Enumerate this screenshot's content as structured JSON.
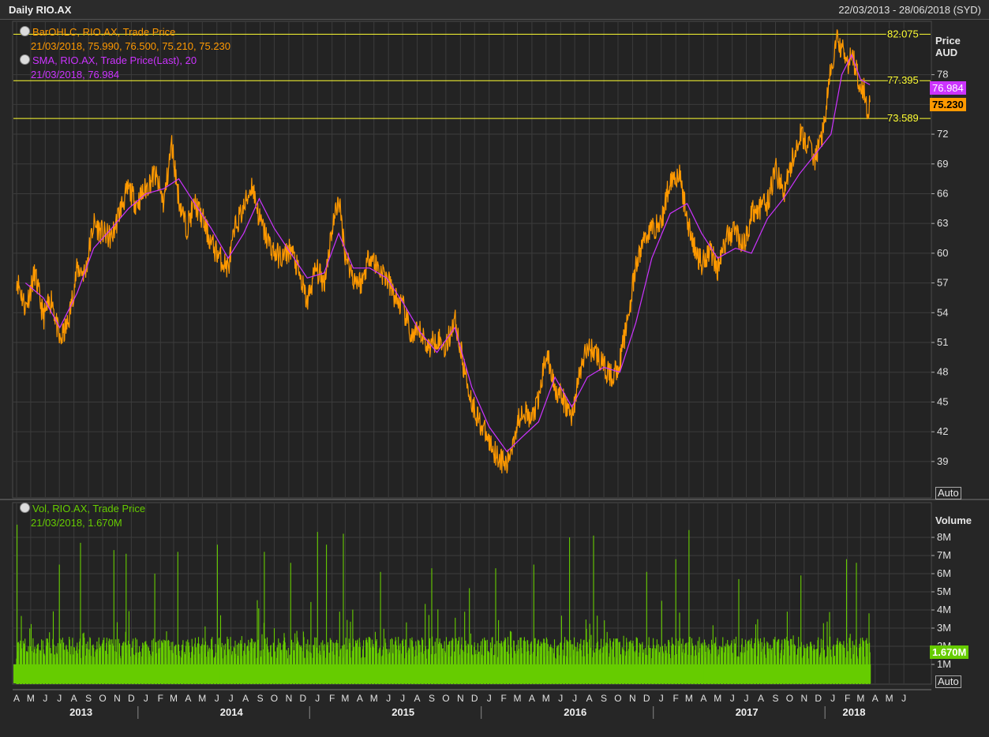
{
  "window": {
    "title": "Daily RIO.AX",
    "date_range": "22/03/2013 - 28/06/2018 (SYD)"
  },
  "price_panel": {
    "legend": [
      {
        "name": "BarOHLC, RIO.AX, Trade Price",
        "values": "21/03/2018, 75.990, 76.500, 75.210, 75.230",
        "color": "#ff9900"
      },
      {
        "name": "SMA, RIO.AX, Trade Price(Last),  20",
        "values": "21/03/2018, 76.984",
        "color": "#cc33ff"
      }
    ],
    "axis_title": [
      "Price",
      "AUD"
    ],
    "auto_label": "Auto",
    "last_price_tag": "75.230",
    "sma_tag": "76.984",
    "reference_lines": [
      {
        "label": "82.075",
        "value": 82.075
      },
      {
        "label": "77.395",
        "value": 77.395
      },
      {
        "label": "73.589",
        "value": 73.589
      }
    ]
  },
  "volume_panel": {
    "legend": {
      "name": "Vol, RIO.AX, Trade Price",
      "values": "21/03/2018, 1.670M",
      "color": "#66cc00"
    },
    "axis_title": "Volume",
    "auto_label": "Auto",
    "last_volume_tag": "1.670M"
  },
  "colors": {
    "background": "#262626",
    "grid": "#3c3c3c",
    "price": "#ff9900",
    "sma": "#cc33ff",
    "volume": "#66cc00",
    "reference": "#ffff33"
  },
  "chart_data": [
    {
      "type": "line",
      "title": "Daily RIO.AX",
      "ylabel": "Price AUD",
      "yticks": [
        39,
        42,
        45,
        48,
        51,
        54,
        57,
        60,
        63,
        66,
        69,
        72,
        75,
        78
      ],
      "ytick_labels": [
        "39",
        "42",
        "45",
        "48",
        "51",
        "54",
        "57",
        "60",
        "63",
        "66",
        "69",
        "72",
        "",
        "78"
      ],
      "ylim": [
        36.5,
        81.5
      ],
      "xlim": [
        "2013-04-01",
        "2018-07-01"
      ],
      "month_labels": [
        "A",
        "M",
        "J",
        "J",
        "A",
        "S",
        "O",
        "N",
        "D",
        "J",
        "F",
        "M",
        "A",
        "M",
        "J",
        "J",
        "A",
        "S",
        "O",
        "N",
        "D",
        "J",
        "F",
        "M",
        "A",
        "M",
        "J",
        "J",
        "A",
        "S",
        "O",
        "N",
        "D",
        "J",
        "F",
        "M",
        "A",
        "M",
        "J",
        "J",
        "A",
        "S",
        "O",
        "N",
        "D",
        "J",
        "F",
        "M",
        "A",
        "M",
        "J",
        "J",
        "A",
        "S",
        "O",
        "N",
        "D",
        "J",
        "F",
        "M",
        "A",
        "M",
        "J"
      ],
      "year_labels": [
        "2013",
        "2014",
        "2015",
        "2016",
        "2017",
        "2018"
      ],
      "grid": true,
      "series": [
        {
          "name": "BarOHLC, RIO.AX, Trade Price",
          "x": [
            "2013-04-01",
            "2013-04-20",
            "2013-05-10",
            "2013-05-28",
            "2013-06-15",
            "2013-07-02",
            "2013-07-20",
            "2013-08-08",
            "2013-08-25",
            "2013-09-12",
            "2013-10-01",
            "2013-10-20",
            "2013-11-08",
            "2013-11-25",
            "2013-12-12",
            "2014-01-01",
            "2014-01-20",
            "2014-02-08",
            "2014-02-25",
            "2014-03-12",
            "2014-03-28",
            "2014-04-15",
            "2014-05-01",
            "2014-05-20",
            "2014-06-08",
            "2014-06-25",
            "2014-07-12",
            "2014-07-28",
            "2014-08-15",
            "2014-08-30",
            "2014-09-15",
            "2014-10-01",
            "2014-10-18",
            "2014-11-05",
            "2014-11-22",
            "2014-12-10",
            "2014-12-28",
            "2015-01-15",
            "2015-02-01",
            "2015-02-15",
            "2015-03-01",
            "2015-03-18",
            "2015-04-05",
            "2015-04-22",
            "2015-05-10",
            "2015-05-28",
            "2015-06-15",
            "2015-07-02",
            "2015-07-20",
            "2015-08-08",
            "2015-08-25",
            "2015-09-12",
            "2015-10-01",
            "2015-10-20",
            "2015-11-08",
            "2015-11-25",
            "2015-12-12",
            "2016-01-01",
            "2016-01-20",
            "2016-02-08",
            "2016-02-25",
            "2016-03-12",
            "2016-03-28",
            "2016-04-15",
            "2016-05-01",
            "2016-05-20",
            "2016-06-08",
            "2016-06-25",
            "2016-07-12",
            "2016-07-28",
            "2016-08-15",
            "2016-09-01",
            "2016-09-18",
            "2016-10-05",
            "2016-10-22",
            "2016-11-08",
            "2016-11-25",
            "2016-12-12",
            "2017-01-01",
            "2017-01-20",
            "2017-02-08",
            "2017-02-25",
            "2017-03-12",
            "2017-03-28",
            "2017-04-15",
            "2017-05-01",
            "2017-05-20",
            "2017-06-08",
            "2017-06-25",
            "2017-07-12",
            "2017-07-28",
            "2017-08-15",
            "2017-09-01",
            "2017-09-18",
            "2017-10-05",
            "2017-10-22",
            "2017-11-08",
            "2017-11-25",
            "2017-12-12",
            "2017-12-28",
            "2018-01-10",
            "2018-01-20",
            "2018-02-01",
            "2018-02-10",
            "2018-02-20",
            "2018-03-01",
            "2018-03-08",
            "2018-03-15",
            "2018-03-21"
          ],
          "y": [
            57.5,
            54.5,
            58.0,
            53.5,
            55.5,
            51.0,
            53.0,
            58.5,
            58.0,
            63.0,
            62.0,
            61.5,
            64.5,
            66.5,
            65.0,
            66.5,
            68.0,
            65.0,
            71.0,
            65.5,
            62.5,
            65.0,
            63.5,
            61.0,
            59.5,
            58.5,
            63.0,
            64.5,
            67.0,
            63.5,
            61.5,
            60.0,
            59.5,
            60.5,
            58.0,
            55.0,
            58.5,
            57.0,
            62.5,
            65.5,
            60.0,
            57.5,
            57.0,
            60.0,
            58.5,
            57.5,
            55.5,
            54.5,
            51.5,
            52.0,
            50.5,
            51.5,
            50.5,
            53.5,
            48.5,
            45.0,
            43.0,
            41.0,
            39.5,
            38.5,
            42.0,
            44.5,
            43.0,
            45.0,
            50.0,
            46.5,
            45.0,
            43.5,
            48.0,
            50.5,
            50.0,
            48.5,
            47.5,
            49.0,
            53.5,
            58.5,
            61.5,
            62.5,
            63.0,
            67.5,
            68.0,
            63.5,
            60.5,
            59.0,
            60.5,
            58.5,
            61.5,
            62.5,
            60.5,
            64.0,
            64.5,
            65.0,
            68.5,
            66.0,
            69.0,
            72.0,
            71.0,
            69.5,
            72.5,
            78.5,
            81.5,
            80.5,
            79.0,
            80.0,
            78.5,
            77.0,
            76.5,
            74.5,
            75.23
          ]
        },
        {
          "name": "SMA, RIO.AX, Trade Price(Last),  20",
          "x": [
            "2013-04-20",
            "2013-05-28",
            "2013-07-02",
            "2013-08-08",
            "2013-09-12",
            "2013-10-20",
            "2013-11-25",
            "2014-01-01",
            "2014-02-08",
            "2014-03-12",
            "2014-04-15",
            "2014-05-20",
            "2014-06-25",
            "2014-07-28",
            "2014-08-30",
            "2014-10-01",
            "2014-11-05",
            "2014-12-10",
            "2015-01-15",
            "2015-02-15",
            "2015-03-18",
            "2015-04-22",
            "2015-05-28",
            "2015-07-02",
            "2015-08-08",
            "2015-09-12",
            "2015-10-20",
            "2015-11-25",
            "2016-01-01",
            "2016-02-08",
            "2016-03-12",
            "2016-04-15",
            "2016-05-20",
            "2016-06-25",
            "2016-07-28",
            "2016-09-01",
            "2016-10-05",
            "2016-11-08",
            "2016-12-12",
            "2017-01-20",
            "2017-02-25",
            "2017-03-28",
            "2017-05-01",
            "2017-06-08",
            "2017-07-12",
            "2017-08-15",
            "2017-09-18",
            "2017-10-22",
            "2017-11-25",
            "2017-12-28",
            "2018-01-20",
            "2018-02-10",
            "2018-03-01",
            "2018-03-21"
          ],
          "y": [
            57.0,
            55.5,
            52.5,
            56.0,
            60.5,
            62.5,
            64.5,
            66.0,
            66.5,
            67.5,
            65.0,
            62.5,
            59.5,
            62.0,
            65.5,
            62.5,
            60.0,
            57.5,
            58.0,
            62.0,
            58.5,
            58.5,
            57.5,
            55.0,
            52.0,
            50.0,
            52.5,
            46.5,
            42.5,
            40.0,
            41.5,
            43.0,
            47.5,
            44.5,
            47.5,
            48.5,
            48.0,
            53.0,
            59.5,
            64.0,
            65.0,
            62.0,
            59.5,
            60.5,
            60.0,
            63.5,
            65.5,
            68.0,
            70.0,
            72.0,
            78.0,
            80.0,
            77.5,
            76.984
          ]
        }
      ]
    },
    {
      "type": "bar",
      "title": "Vol, RIO.AX, Trade Price",
      "ylabel": "Volume",
      "yticks": [
        1,
        2,
        3,
        4,
        5,
        6,
        7,
        8
      ],
      "ytick_labels": [
        "1M",
        "2M",
        "3M",
        "4M",
        "5M",
        "6M",
        "7M",
        "8M"
      ],
      "ylim": [
        0,
        8.8
      ],
      "unit": "M",
      "baseline_volume": 2.2,
      "series": [
        {
          "name": "Vol, RIO.AX, Trade Price",
          "x": [
            "2013-04-02",
            "2013-07-01",
            "2013-08-15",
            "2013-10-25",
            "2013-11-20",
            "2014-01-20",
            "2014-03-10",
            "2014-06-02",
            "2014-07-20",
            "2014-09-10",
            "2014-11-05",
            "2015-01-01",
            "2015-01-20",
            "2015-02-25",
            "2015-05-15",
            "2015-09-01",
            "2015-11-20",
            "2016-01-15",
            "2016-04-05",
            "2016-06-20",
            "2016-08-10",
            "2016-10-15",
            "2016-12-01",
            "2017-02-01",
            "2017-03-01",
            "2017-06-15",
            "2017-08-20",
            "2017-10-25",
            "2018-01-30",
            "2018-02-20",
            "2018-03-21"
          ],
          "y": [
            8.7,
            6.5,
            7.7,
            7.3,
            7.1,
            6.0,
            7.2,
            7.6,
            6.8,
            7.2,
            6.6,
            8.3,
            7.6,
            8.2,
            6.1,
            6.3,
            5.2,
            6.3,
            6.5,
            8.0,
            8.1,
            5.8,
            6.1,
            6.8,
            8.4,
            5.7,
            5.8,
            5.9,
            6.8,
            6.6,
            1.67
          ]
        }
      ]
    }
  ]
}
